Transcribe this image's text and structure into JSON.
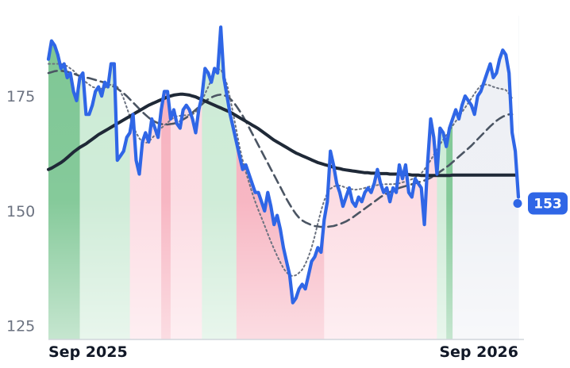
{
  "chart_data": {
    "type": "line",
    "title": "",
    "xlabel": "",
    "ylabel": "",
    "x_ticks": [
      "Sep 2025",
      "Sep 2026"
    ],
    "y_ticks": [
      "125",
      "150",
      "175"
    ],
    "ylim": [
      122,
      189
    ],
    "grid": false,
    "legend": "none",
    "colors": {
      "price": "#2f66e6",
      "ma_long": "#1f2937",
      "ma_mid": "#4b5563",
      "ma_short": "#6b7280",
      "up_strong": "#7fc795",
      "up_light": "#cdebd6",
      "down_strong": "#f7b3c0",
      "down_light": "#fcdbe2",
      "neutral": "#eef0f5",
      "badge": "#2f66e6"
    },
    "last_value_label": "153",
    "last_value": 153,
    "regime_bands": [
      {
        "from": 0,
        "to": 10,
        "regime": "up_strong"
      },
      {
        "from": 10,
        "to": 26,
        "regime": "up_light"
      },
      {
        "from": 26,
        "to": 36,
        "regime": "down_light"
      },
      {
        "from": 36,
        "to": 39,
        "regime": "down_strong"
      },
      {
        "from": 39,
        "to": 49,
        "regime": "down_light"
      },
      {
        "from": 49,
        "to": 60,
        "regime": "up_light"
      },
      {
        "from": 60,
        "to": 88,
        "regime": "down_strong"
      },
      {
        "from": 88,
        "to": 124,
        "regime": "down_light"
      },
      {
        "from": 124,
        "to": 127,
        "regime": "up_light"
      },
      {
        "from": 127,
        "to": 129,
        "regime": "up_strong"
      },
      {
        "from": 129,
        "to": 150,
        "regime": "neutral"
      }
    ],
    "series": [
      {
        "key": "price",
        "values": [
          183,
          187,
          186,
          184,
          181,
          182,
          179,
          180,
          176,
          174,
          179,
          180,
          171,
          171,
          173,
          176,
          177,
          175,
          178,
          177,
          182,
          182,
          161,
          162,
          163,
          166,
          167,
          171,
          161,
          158,
          165,
          167,
          165,
          170,
          168,
          166,
          172,
          176,
          176,
          170,
          172,
          169,
          168,
          172,
          173,
          172,
          170,
          167,
          172,
          175,
          181,
          180,
          178,
          181,
          180,
          190,
          179,
          175,
          171,
          168,
          165,
          162,
          159,
          160,
          158,
          156,
          154,
          154,
          152,
          150,
          154,
          151,
          147,
          149,
          146,
          142,
          139,
          136,
          130,
          131,
          133,
          134,
          133,
          136,
          139,
          140,
          142,
          141,
          148,
          152,
          163,
          160,
          156,
          154,
          151,
          153,
          155,
          152,
          151,
          153,
          152,
          154,
          155,
          154,
          156,
          159,
          156,
          154,
          155,
          152,
          155,
          154,
          160,
          157,
          160,
          154,
          153,
          157,
          156,
          155,
          147,
          160,
          170,
          166,
          158,
          168,
          167,
          164,
          168,
          170,
          172,
          170,
          173,
          175,
          174,
          173,
          171,
          175,
          176,
          178,
          180,
          182,
          179,
          180,
          183,
          185,
          184,
          180,
          167,
          163,
          153
        ]
      },
      {
        "key": "ma_long",
        "values": [
          159,
          159.3,
          159.7,
          160.1,
          160.5,
          161,
          161.6,
          162.2,
          162.8,
          163.3,
          163.8,
          164.2,
          164.6,
          165.1,
          165.6,
          166.1,
          166.6,
          167,
          167.4,
          167.8,
          168.2,
          168.6,
          169,
          169.4,
          169.8,
          170.2,
          170.6,
          171,
          171.4,
          171.8,
          172.2,
          172.6,
          173,
          173.3,
          173.6,
          173.9,
          174.2,
          174.5,
          174.8,
          175,
          175.2,
          175.3,
          175.4,
          175.4,
          175.3,
          175.2,
          175,
          174.8,
          174.5,
          174.2,
          173.9,
          173.6,
          173.3,
          173,
          172.7,
          172.4,
          172.1,
          171.8,
          171.5,
          171.1,
          170.7,
          170.3,
          169.9,
          169.5,
          169.1,
          168.7,
          168.3,
          167.9,
          167.4,
          166.9,
          166.4,
          165.9,
          165.4,
          165,
          164.6,
          164.2,
          163.8,
          163.4,
          163,
          162.6,
          162.3,
          162,
          161.7,
          161.4,
          161.1,
          160.8,
          160.5,
          160.3,
          160.1,
          159.9,
          159.7,
          159.5,
          159.3,
          159.2,
          159,
          158.9,
          158.8,
          158.7,
          158.6,
          158.5,
          158.4,
          158.3,
          158.3,
          158.2,
          158.2,
          158.2,
          158.1,
          158.1,
          158.1,
          158,
          158,
          158,
          158,
          158,
          157.9,
          157.9,
          157.8,
          157.8,
          157.8,
          157.7,
          157.7,
          157.7,
          157.7,
          157.7,
          157.7,
          157.7,
          157.7,
          157.7,
          157.7,
          157.8,
          157.8,
          157.8,
          157.8,
          157.8,
          157.8,
          157.8,
          157.8,
          157.8,
          157.8,
          157.8,
          157.8,
          157.8,
          157.8,
          157.8,
          157.8,
          157.8,
          157.8,
          157.8,
          157.8,
          157.8
        ]
      },
      {
        "key": "ma_mid",
        "values": [
          180,
          180.2,
          180.4,
          180.5,
          180.5,
          180.4,
          180.3,
          180.1,
          179.9,
          179.6,
          179.4,
          179.2,
          179,
          178.9,
          178.7,
          178.5,
          178.3,
          178.1,
          177.9,
          177.6,
          177.3,
          177,
          176.6,
          176.1,
          175.6,
          175,
          174.3,
          173.6,
          172.9,
          172.2,
          171.5,
          170.9,
          170.3,
          169.8,
          169.4,
          169.1,
          168.9,
          168.8,
          168.8,
          168.9,
          169,
          169.2,
          169.5,
          169.9,
          170.3,
          170.8,
          171.4,
          172,
          172.6,
          173.2,
          173.8,
          174.3,
          174.7,
          175,
          175.2,
          175.3,
          175.2,
          174.9,
          174.4,
          173.7,
          172.8,
          171.8,
          170.7,
          169.5,
          168.2,
          166.9,
          165.6,
          164.3,
          163,
          161.7,
          160.4,
          159.1,
          157.8,
          156.5,
          155.2,
          153.9,
          152.6,
          151.4,
          150.3,
          149.3,
          148.5,
          147.9,
          147.5,
          147.2,
          146.9,
          146.7,
          146.6,
          146.5,
          146.5,
          146.5,
          146.6,
          146.7,
          146.9,
          147.1,
          147.4,
          147.7,
          148.1,
          148.5,
          149,
          149.5,
          150,
          150.5,
          151,
          151.5,
          152,
          152.5,
          153,
          153.4,
          153.8,
          154.1,
          154.4,
          154.7,
          155,
          155.2,
          155.4,
          155.6,
          155.8,
          156,
          156.2,
          156.4,
          156.6,
          156.9,
          157.2,
          157.6,
          158,
          158.5,
          159,
          159.5,
          160,
          160.6,
          161.2,
          161.8,
          162.4,
          163,
          163.6,
          164.2,
          164.9,
          165.6,
          166.3,
          167,
          167.7,
          168.4,
          169,
          169.6,
          170.1,
          170.5,
          170.8,
          171,
          171
        ]
      },
      {
        "key": "ma_short",
        "values": [
          182,
          182,
          182,
          182,
          182,
          181.8,
          181.5,
          181,
          180.5,
          179.8,
          179,
          178.5,
          178,
          177.5,
          177,
          176.8,
          176.5,
          176.6,
          176.8,
          177.2,
          177.5,
          177.5,
          177,
          176,
          174.5,
          172.5,
          170.5,
          168.5,
          167,
          165.8,
          165,
          164.8,
          165,
          165.8,
          166.5,
          167.2,
          168,
          168.6,
          169.2,
          169.8,
          170.3,
          170.6,
          170.7,
          170.8,
          170.8,
          170.9,
          171,
          171.5,
          172.5,
          174,
          175.5,
          177,
          178.5,
          180,
          180.8,
          180.8,
          179.5,
          177.5,
          174.5,
          171,
          167.5,
          164,
          161,
          158.5,
          156.2,
          154,
          152,
          150.2,
          148.5,
          146.8,
          145,
          143.3,
          141.7,
          140.2,
          138.8,
          137.5,
          136.6,
          136,
          135.8,
          136,
          136.5,
          137.2,
          138.4,
          140,
          142,
          144.5,
          147.3,
          150,
          152.2,
          153.8,
          154.8,
          155.3,
          155.5,
          155.5,
          155.3,
          155,
          154.8,
          154.7,
          154.6,
          154.7,
          154.8,
          155,
          155.2,
          155.4,
          155.5,
          155.6,
          155.7,
          155.8,
          155.8,
          155.8,
          155.8,
          155.9,
          156,
          156.2,
          156.4,
          156.6,
          156.9,
          157.2,
          157.6,
          158.2,
          159,
          160,
          161,
          162.2,
          163.4,
          164.5,
          165.5,
          166.5,
          167.5,
          168.5,
          169.5,
          170.5,
          171.5,
          172.5,
          173.5,
          174.5,
          175.5,
          176.5,
          177.2,
          177.5,
          177.5,
          177.3,
          177,
          176.8,
          176.6,
          176.5,
          176.3,
          175.5,
          174.5
        ]
      }
    ]
  }
}
